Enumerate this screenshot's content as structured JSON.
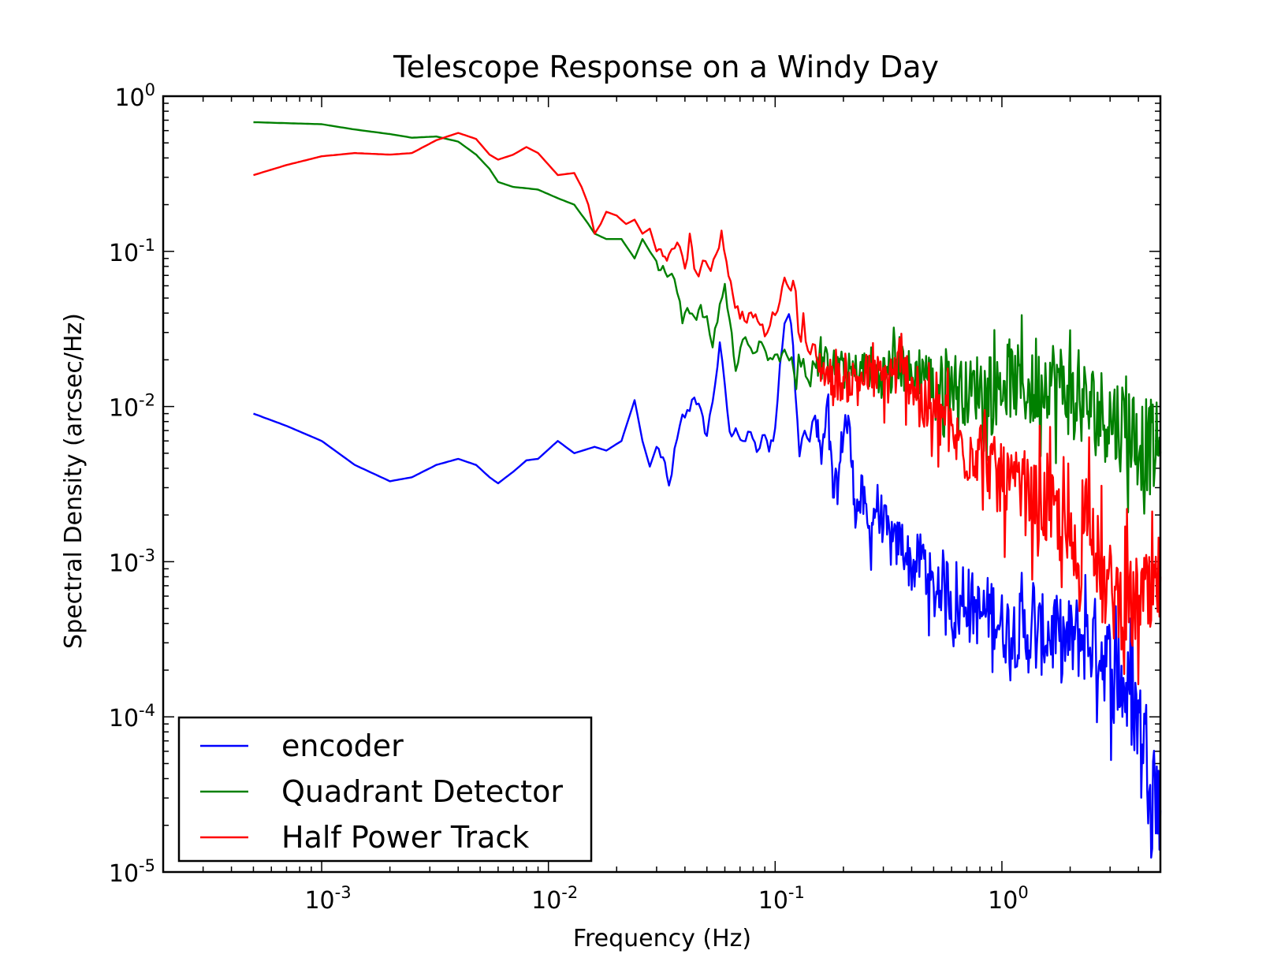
{
  "chart_data": {
    "type": "line",
    "title": "Telescope Response on a Windy Day",
    "xlabel": "Frequency (Hz)",
    "ylabel": "Spectral Density (arcsec/Hz)",
    "xscale": "log",
    "yscale": "log",
    "xlim": [
      0.0002,
      5.0
    ],
    "ylim": [
      1e-05,
      1.0
    ],
    "x_ticks": [
      {
        "value": 0.001,
        "base": "10",
        "exp": "-3"
      },
      {
        "value": 0.01,
        "base": "10",
        "exp": "-2"
      },
      {
        "value": 0.1,
        "base": "10",
        "exp": "-1"
      },
      {
        "value": 1.0,
        "base": "10",
        "exp": "0"
      }
    ],
    "y_ticks": [
      {
        "value": 1e-05,
        "base": "10",
        "exp": "-5"
      },
      {
        "value": 0.0001,
        "base": "10",
        "exp": "-4"
      },
      {
        "value": 0.001,
        "base": "10",
        "exp": "-3"
      },
      {
        "value": 0.01,
        "base": "10",
        "exp": "-2"
      },
      {
        "value": 0.1,
        "base": "10",
        "exp": "-1"
      },
      {
        "value": 1.0,
        "base": "10",
        "exp": "0"
      }
    ],
    "legend_position": "lower-left",
    "series": [
      {
        "name": "encoder",
        "color": "#0000ff",
        "points": [
          [
            0.0005,
            0.009
          ],
          [
            0.0007,
            0.0075
          ],
          [
            0.001,
            0.006
          ],
          [
            0.0014,
            0.0042
          ],
          [
            0.002,
            0.0033
          ],
          [
            0.0025,
            0.0035
          ],
          [
            0.0032,
            0.0042
          ],
          [
            0.004,
            0.0046
          ],
          [
            0.0048,
            0.0042
          ],
          [
            0.0055,
            0.0035
          ],
          [
            0.006,
            0.0032
          ],
          [
            0.007,
            0.0038
          ],
          [
            0.008,
            0.0045
          ],
          [
            0.009,
            0.0046
          ],
          [
            0.011,
            0.006
          ],
          [
            0.013,
            0.005
          ],
          [
            0.016,
            0.0055
          ],
          [
            0.018,
            0.0052
          ],
          [
            0.021,
            0.006
          ],
          [
            0.024,
            0.011
          ],
          [
            0.026,
            0.006
          ],
          [
            0.028,
            0.0041
          ],
          [
            0.03,
            0.0055
          ],
          [
            0.032,
            0.0046
          ],
          [
            0.034,
            0.003
          ],
          [
            0.036,
            0.005
          ],
          [
            0.039,
            0.0085
          ],
          [
            0.041,
            0.009
          ],
          [
            0.044,
            0.012
          ],
          [
            0.047,
            0.009
          ],
          [
            0.05,
            0.0065
          ],
          [
            0.053,
            0.011
          ],
          [
            0.057,
            0.024
          ],
          [
            0.06,
            0.014
          ],
          [
            0.063,
            0.0065
          ],
          [
            0.067,
            0.0075
          ],
          [
            0.072,
            0.0055
          ],
          [
            0.078,
            0.0072
          ],
          [
            0.083,
            0.0048
          ],
          [
            0.088,
            0.0065
          ],
          [
            0.094,
            0.0055
          ],
          [
            0.1,
            0.007
          ],
          [
            0.105,
            0.018
          ],
          [
            0.11,
            0.035
          ],
          [
            0.115,
            0.04
          ],
          [
            0.12,
            0.025
          ],
          [
            0.128,
            0.006
          ],
          [
            0.135,
            0.008
          ],
          [
            0.142,
            0.005
          ],
          [
            0.15,
            0.0085
          ],
          [
            0.16,
            0.0045
          ],
          [
            0.17,
            0.009
          ],
          [
            0.18,
            0.0028
          ],
          [
            0.19,
            0.0032
          ],
          [
            0.2,
            0.0075
          ],
          [
            0.21,
            0.0085
          ],
          [
            0.22,
            0.0035
          ],
          [
            0.23,
            0.0022
          ],
          [
            0.24,
            0.0028
          ],
          [
            0.26,
            0.0015
          ],
          [
            0.28,
            0.0024
          ],
          [
            0.3,
            0.0018
          ],
          [
            0.33,
            0.0012
          ],
          [
            0.36,
            0.0014
          ],
          [
            0.4,
            0.0009
          ],
          [
            0.45,
            0.0011
          ],
          [
            0.5,
            0.0006
          ],
          [
            0.56,
            0.0008
          ],
          [
            0.63,
            0.00045
          ],
          [
            0.7,
            0.0006
          ],
          [
            0.8,
            0.00045
          ],
          [
            0.9,
            0.0005
          ],
          [
            1.0,
            0.00038
          ],
          [
            1.2,
            0.00036
          ],
          [
            1.4,
            0.00032
          ],
          [
            1.6,
            0.00035
          ],
          [
            1.9,
            0.0003
          ],
          [
            2.2,
            0.00033
          ],
          [
            2.6,
            0.0003
          ],
          [
            3.0,
            0.00022
          ],
          [
            3.4,
            0.00016
          ],
          [
            3.8,
            0.00012
          ],
          [
            4.2,
            8e-05
          ],
          [
            4.6,
            5e-05
          ],
          [
            5.0,
            2.5e-05
          ]
        ]
      },
      {
        "name": "Quadrant Detector",
        "color": "#008000",
        "points": [
          [
            0.0005,
            0.68
          ],
          [
            0.0007,
            0.67
          ],
          [
            0.001,
            0.66
          ],
          [
            0.0014,
            0.61
          ],
          [
            0.002,
            0.57
          ],
          [
            0.0025,
            0.54
          ],
          [
            0.0032,
            0.55
          ],
          [
            0.004,
            0.51
          ],
          [
            0.0048,
            0.42
          ],
          [
            0.0055,
            0.34
          ],
          [
            0.006,
            0.28
          ],
          [
            0.007,
            0.26
          ],
          [
            0.008,
            0.255
          ],
          [
            0.009,
            0.25
          ],
          [
            0.011,
            0.22
          ],
          [
            0.013,
            0.2
          ],
          [
            0.015,
            0.15
          ],
          [
            0.016,
            0.13
          ],
          [
            0.018,
            0.12
          ],
          [
            0.021,
            0.12
          ],
          [
            0.024,
            0.09
          ],
          [
            0.026,
            0.12
          ],
          [
            0.028,
            0.1
          ],
          [
            0.032,
            0.075
          ],
          [
            0.035,
            0.07
          ],
          [
            0.037,
            0.055
          ],
          [
            0.039,
            0.035
          ],
          [
            0.041,
            0.045
          ],
          [
            0.044,
            0.038
          ],
          [
            0.047,
            0.042
          ],
          [
            0.05,
            0.035
          ],
          [
            0.053,
            0.025
          ],
          [
            0.057,
            0.045
          ],
          [
            0.06,
            0.06
          ],
          [
            0.063,
            0.035
          ],
          [
            0.067,
            0.018
          ],
          [
            0.072,
            0.028
          ],
          [
            0.078,
            0.022
          ],
          [
            0.085,
            0.025
          ],
          [
            0.095,
            0.02
          ],
          [
            0.11,
            0.022
          ],
          [
            0.13,
            0.016
          ],
          [
            0.15,
            0.02
          ],
          [
            0.18,
            0.018
          ],
          [
            0.22,
            0.016
          ],
          [
            0.26,
            0.018
          ],
          [
            0.3,
            0.016
          ],
          [
            0.35,
            0.02
          ],
          [
            0.4,
            0.015
          ],
          [
            0.45,
            0.018
          ],
          [
            0.5,
            0.013
          ],
          [
            0.6,
            0.015
          ],
          [
            0.7,
            0.012
          ],
          [
            0.8,
            0.014
          ],
          [
            0.9,
            0.011
          ],
          [
            1.0,
            0.015
          ],
          [
            1.2,
            0.014
          ],
          [
            1.4,
            0.012
          ],
          [
            1.6,
            0.016
          ],
          [
            1.8,
            0.014
          ],
          [
            2.0,
            0.012
          ],
          [
            2.4,
            0.01
          ],
          [
            2.8,
            0.009
          ],
          [
            3.2,
            0.008
          ],
          [
            3.6,
            0.0075
          ],
          [
            4.0,
            0.006
          ],
          [
            4.5,
            0.0055
          ],
          [
            5.0,
            0.005
          ]
        ]
      },
      {
        "name": "Half Power Track",
        "color": "#ff0000",
        "points": [
          [
            0.0005,
            0.31
          ],
          [
            0.0007,
            0.36
          ],
          [
            0.001,
            0.41
          ],
          [
            0.0014,
            0.43
          ],
          [
            0.002,
            0.42
          ],
          [
            0.0025,
            0.43
          ],
          [
            0.0032,
            0.52
          ],
          [
            0.004,
            0.58
          ],
          [
            0.0048,
            0.53
          ],
          [
            0.0055,
            0.42
          ],
          [
            0.006,
            0.39
          ],
          [
            0.007,
            0.42
          ],
          [
            0.008,
            0.47
          ],
          [
            0.009,
            0.43
          ],
          [
            0.011,
            0.31
          ],
          [
            0.013,
            0.32
          ],
          [
            0.014,
            0.26
          ],
          [
            0.015,
            0.2
          ],
          [
            0.016,
            0.13
          ],
          [
            0.017,
            0.15
          ],
          [
            0.018,
            0.18
          ],
          [
            0.02,
            0.17
          ],
          [
            0.022,
            0.15
          ],
          [
            0.024,
            0.16
          ],
          [
            0.026,
            0.13
          ],
          [
            0.028,
            0.14
          ],
          [
            0.03,
            0.1
          ],
          [
            0.032,
            0.1
          ],
          [
            0.034,
            0.09
          ],
          [
            0.036,
            0.1
          ],
          [
            0.038,
            0.11
          ],
          [
            0.04,
            0.08
          ],
          [
            0.042,
            0.12
          ],
          [
            0.045,
            0.07
          ],
          [
            0.048,
            0.08
          ],
          [
            0.052,
            0.08
          ],
          [
            0.055,
            0.1
          ],
          [
            0.058,
            0.13
          ],
          [
            0.061,
            0.09
          ],
          [
            0.065,
            0.05
          ],
          [
            0.07,
            0.04
          ],
          [
            0.075,
            0.035
          ],
          [
            0.08,
            0.04
          ],
          [
            0.09,
            0.03
          ],
          [
            0.1,
            0.04
          ],
          [
            0.11,
            0.065
          ],
          [
            0.12,
            0.06
          ],
          [
            0.13,
            0.03
          ],
          [
            0.15,
            0.02
          ],
          [
            0.17,
            0.016
          ],
          [
            0.2,
            0.014
          ],
          [
            0.25,
            0.016
          ],
          [
            0.3,
            0.015
          ],
          [
            0.35,
            0.017
          ],
          [
            0.4,
            0.015
          ],
          [
            0.45,
            0.01
          ],
          [
            0.5,
            0.008
          ],
          [
            0.55,
            0.009
          ],
          [
            0.6,
            0.0065
          ],
          [
            0.7,
            0.005
          ],
          [
            0.8,
            0.0055
          ],
          [
            0.9,
            0.004
          ],
          [
            1.0,
            0.0032
          ],
          [
            1.2,
            0.0028
          ],
          [
            1.4,
            0.0024
          ],
          [
            1.6,
            0.0022
          ],
          [
            1.8,
            0.0018
          ],
          [
            2.0,
            0.0012
          ],
          [
            2.2,
            0.0009
          ],
          [
            2.4,
            0.0032
          ],
          [
            2.6,
            0.0012
          ],
          [
            2.8,
            0.0007
          ],
          [
            3.0,
            0.00065
          ],
          [
            3.4,
            0.00055
          ],
          [
            3.8,
            0.0005
          ],
          [
            4.2,
            0.0006
          ],
          [
            4.6,
            0.0005
          ],
          [
            5.0,
            0.0008
          ]
        ]
      }
    ]
  }
}
